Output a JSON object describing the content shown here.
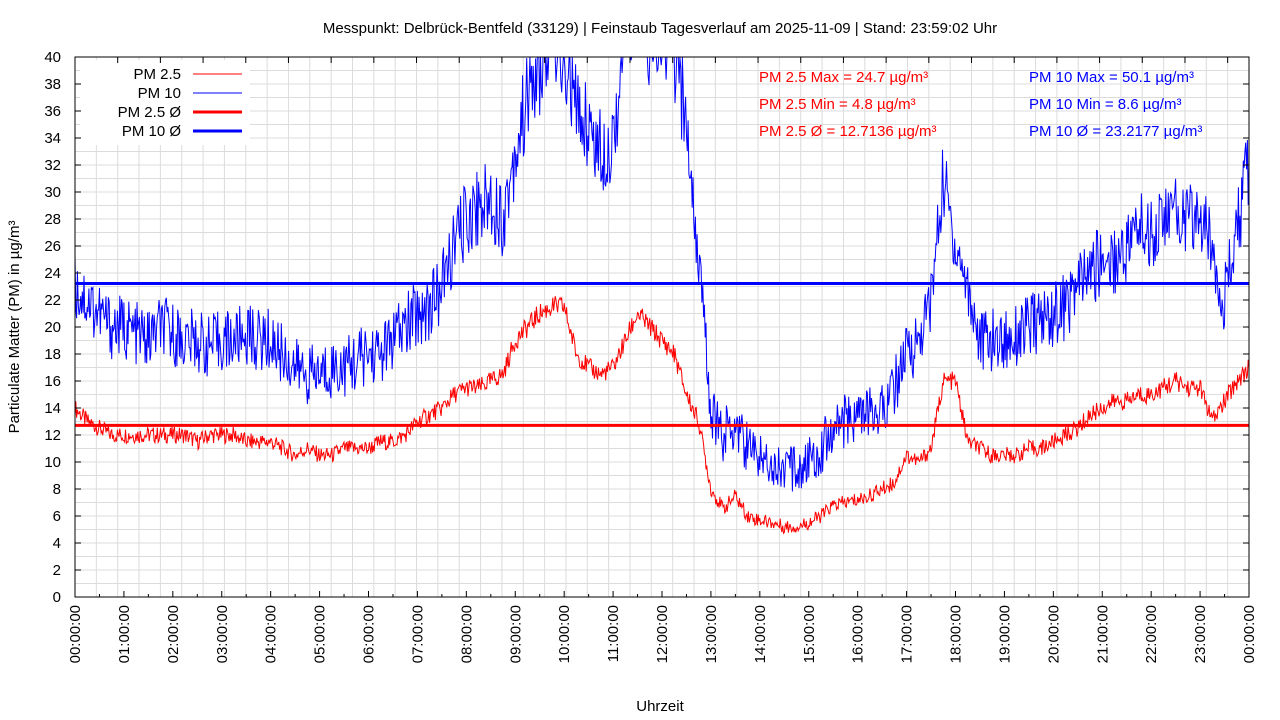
{
  "chart_data": {
    "type": "line",
    "title": "Messpunkt: Delbrück-Bentfeld (33129) | Feinstaub Tagesverlauf am 2025-11-09 | Stand: 23:59:02 Uhr",
    "xlabel": "Uhrzeit",
    "ylabel": "Particulate Matter (PM) in µg/m³",
    "xlim_hours": [
      0,
      24
    ],
    "ylim": [
      0,
      40
    ],
    "grid": true,
    "legend_position": "top-left",
    "x_tick_labels": [
      "00:00:00",
      "01:00:00",
      "02:00:00",
      "03:00:00",
      "04:00:00",
      "05:00:00",
      "06:00:00",
      "07:00:00",
      "08:00:00",
      "09:00:00",
      "10:00:00",
      "11:00:00",
      "12:00:00",
      "13:00:00",
      "14:00:00",
      "15:00:00",
      "16:00:00",
      "17:00:00",
      "18:00:00",
      "19:00:00",
      "20:00:00",
      "21:00:00",
      "22:00:00",
      "23:00:00",
      "00:00:00"
    ],
    "y_ticks": [
      0,
      2,
      4,
      6,
      8,
      10,
      12,
      14,
      16,
      18,
      20,
      22,
      24,
      26,
      28,
      30,
      32,
      34,
      36,
      38,
      40
    ],
    "x_step_minutes": 15,
    "series": [
      {
        "name": "PM 2.5",
        "color": "#ff0000",
        "values": [
          14,
          13,
          12.5,
          12,
          12,
          12,
          12,
          12,
          12,
          12,
          11.5,
          12,
          12,
          12,
          11.5,
          11.5,
          11.5,
          11,
          10.5,
          11,
          10.5,
          10.5,
          11,
          11,
          11,
          11.5,
          11.5,
          12,
          13,
          13.5,
          14,
          15,
          15.5,
          15.5,
          16,
          16.5,
          19,
          20,
          21,
          21.5,
          21.5,
          18,
          17,
          16.5,
          17,
          19,
          21,
          20,
          19,
          18,
          15,
          13,
          8,
          6.5,
          7.5,
          6,
          5.7,
          5.5,
          5.2,
          5.2,
          5.5,
          6,
          6.8,
          7,
          7.2,
          7.5,
          8,
          8.5,
          10.5,
          10,
          11,
          16,
          16,
          11.5,
          11,
          10.5,
          10.5,
          10.5,
          11,
          11,
          11.5,
          12,
          12.5,
          13.5,
          14,
          14.5,
          14.5,
          15,
          15,
          15.5,
          16,
          15.5,
          15.5,
          13,
          14.5,
          16,
          17
        ]
      },
      {
        "name": "PM 10",
        "color": "#0000ff",
        "values": [
          23,
          22,
          21,
          20,
          20,
          19.5,
          19,
          20,
          19.5,
          19,
          19,
          18.5,
          19,
          19,
          19.5,
          19,
          19,
          18,
          17,
          16.5,
          16.5,
          17,
          17,
          17.5,
          18,
          18,
          19,
          20,
          21,
          21.5,
          23,
          26,
          28,
          29,
          29.5,
          28,
          33,
          37,
          39,
          42,
          40,
          36,
          35,
          33,
          34,
          42,
          45,
          40,
          42,
          40,
          35,
          25,
          14,
          12,
          13,
          11,
          10.5,
          10,
          9.5,
          9.5,
          10,
          11,
          12.5,
          13,
          13.5,
          13.5,
          14,
          15.5,
          18,
          19,
          22,
          31,
          26,
          23,
          19,
          19,
          19,
          19.5,
          20,
          20.5,
          21,
          21.5,
          23,
          24,
          25,
          25,
          26,
          27.5,
          27,
          28,
          28.5,
          28,
          28,
          26,
          22,
          27,
          32
        ]
      }
    ],
    "averages": [
      {
        "name": "PM 2.5 Ø",
        "color": "#ff0000",
        "value": 12.7136
      },
      {
        "name": "PM 10 Ø",
        "color": "#0000ff",
        "value": 23.2177
      }
    ],
    "legend": [
      "PM 2.5",
      "PM 10",
      "PM 2.5 Ø",
      "PM 10 Ø"
    ],
    "annotations": {
      "pm25": [
        "PM 2.5 Max = 24.7 µg/m³",
        "PM 2.5 Min = 4.8 µg/m³",
        "PM 2.5 Ø = 12.7136 µg/m³"
      ],
      "pm10": [
        "PM 10 Max = 50.1 µg/m³",
        "PM 10 Min = 8.6 µg/m³",
        "PM 10 Ø = 23.2177 µg/m³"
      ]
    }
  }
}
